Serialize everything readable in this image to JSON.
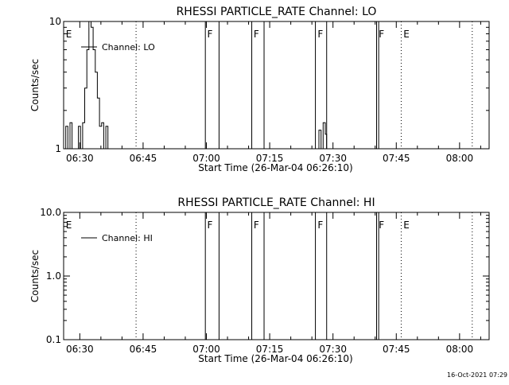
{
  "colors": {
    "background": "#ffffff",
    "foreground": "#000000"
  },
  "footer": {
    "timestamp": "16-Oct-2021 07:29"
  },
  "chart_data": [
    {
      "type": "line",
      "title": "RHESSI PARTICLE_RATE Channel: LO",
      "xlabel": "Start Time (26-Mar-04 06:26:10)",
      "ylabel": "Counts/sec",
      "yscale": "log",
      "xlim": [
        "06:26:10",
        "08:07:00"
      ],
      "ylim": [
        1,
        10
      ],
      "x_ticks": [
        "06:30",
        "06:45",
        "07:00",
        "07:15",
        "07:30",
        "07:45",
        "08:00"
      ],
      "y_ticks": [
        "1",
        "10"
      ],
      "legend": {
        "entries": [
          "Channel: LO"
        ],
        "placement": "top-left"
      },
      "grid": false,
      "markers": [
        {
          "label": "E",
          "time": "06:26:30"
        },
        {
          "label": "F",
          "time": "07:00:00"
        },
        {
          "label": "F",
          "time": "07:11:00"
        },
        {
          "label": "F",
          "time": "07:26:10"
        },
        {
          "label": "F",
          "time": "07:40:40"
        },
        {
          "label": "E",
          "time": "07:46:30"
        }
      ],
      "boundaries_solid": [
        "06:59:45",
        "07:03:00",
        "07:10:45",
        "07:13:40",
        "07:25:50",
        "07:28:30",
        "07:40:20",
        "07:40:50"
      ],
      "boundaries_dotted": [
        "06:43:20",
        "07:46:10",
        "08:03:00"
      ],
      "series": [
        {
          "name": "Channel: LO",
          "segments": [
            {
              "x": [
                "06:26:10",
                "06:26:40",
                "06:27:10",
                "06:27:40",
                "06:28:10",
                "06:28:40",
                "06:29:10",
                "06:29:40",
                "06:30:10",
                "06:30:40",
                "06:31:10",
                "06:31:40",
                "06:32:10",
                "06:32:40",
                "06:33:10",
                "06:33:40",
                "06:34:10",
                "06:34:40",
                "06:35:10",
                "06:35:40",
                "06:36:10",
                "06:36:40",
                "06:37:10",
                "06:37:40",
                "06:38:10"
              ],
              "y": [
                1,
                1.5,
                1,
                1.6,
                1,
                1,
                1,
                1.5,
                1,
                1.6,
                3,
                6,
                10,
                9,
                6,
                4,
                2.5,
                1.5,
                1.6,
                1,
                1.5,
                1,
                1,
                1,
                1
              ]
            },
            {
              "x": [
                "07:26:10",
                "07:26:40",
                "07:27:10",
                "07:27:40",
                "07:28:10",
                "07:28:30"
              ],
              "y": [
                1,
                1.4,
                1,
                1.6,
                1.3,
                1
              ]
            }
          ]
        }
      ]
    },
    {
      "type": "line",
      "title": "RHESSI PARTICLE_RATE Channel: HI",
      "xlabel": "Start Time (26-Mar-04 06:26:10)",
      "ylabel": "Counts/sec",
      "yscale": "log",
      "xlim": [
        "06:26:10",
        "08:07:00"
      ],
      "ylim": [
        0.1,
        10.0
      ],
      "x_ticks": [
        "06:30",
        "06:45",
        "07:00",
        "07:15",
        "07:30",
        "07:45",
        "08:00"
      ],
      "y_ticks": [
        "0.1",
        "1.0",
        "10.0"
      ],
      "legend": {
        "entries": [
          "Channel: HI"
        ],
        "placement": "top-left"
      },
      "grid": false,
      "markers": [
        {
          "label": "E",
          "time": "06:26:30"
        },
        {
          "label": "F",
          "time": "07:00:00"
        },
        {
          "label": "F",
          "time": "07:11:00"
        },
        {
          "label": "F",
          "time": "07:26:10"
        },
        {
          "label": "F",
          "time": "07:40:40"
        },
        {
          "label": "E",
          "time": "07:46:30"
        }
      ],
      "boundaries_solid": [
        "06:59:45",
        "07:03:00",
        "07:10:45",
        "07:13:40",
        "07:25:50",
        "07:28:30",
        "07:40:20",
        "07:40:50"
      ],
      "boundaries_dotted": [
        "06:43:20",
        "07:46:10",
        "08:03:00"
      ],
      "series": [
        {
          "name": "Channel: HI",
          "segments": []
        }
      ]
    }
  ]
}
